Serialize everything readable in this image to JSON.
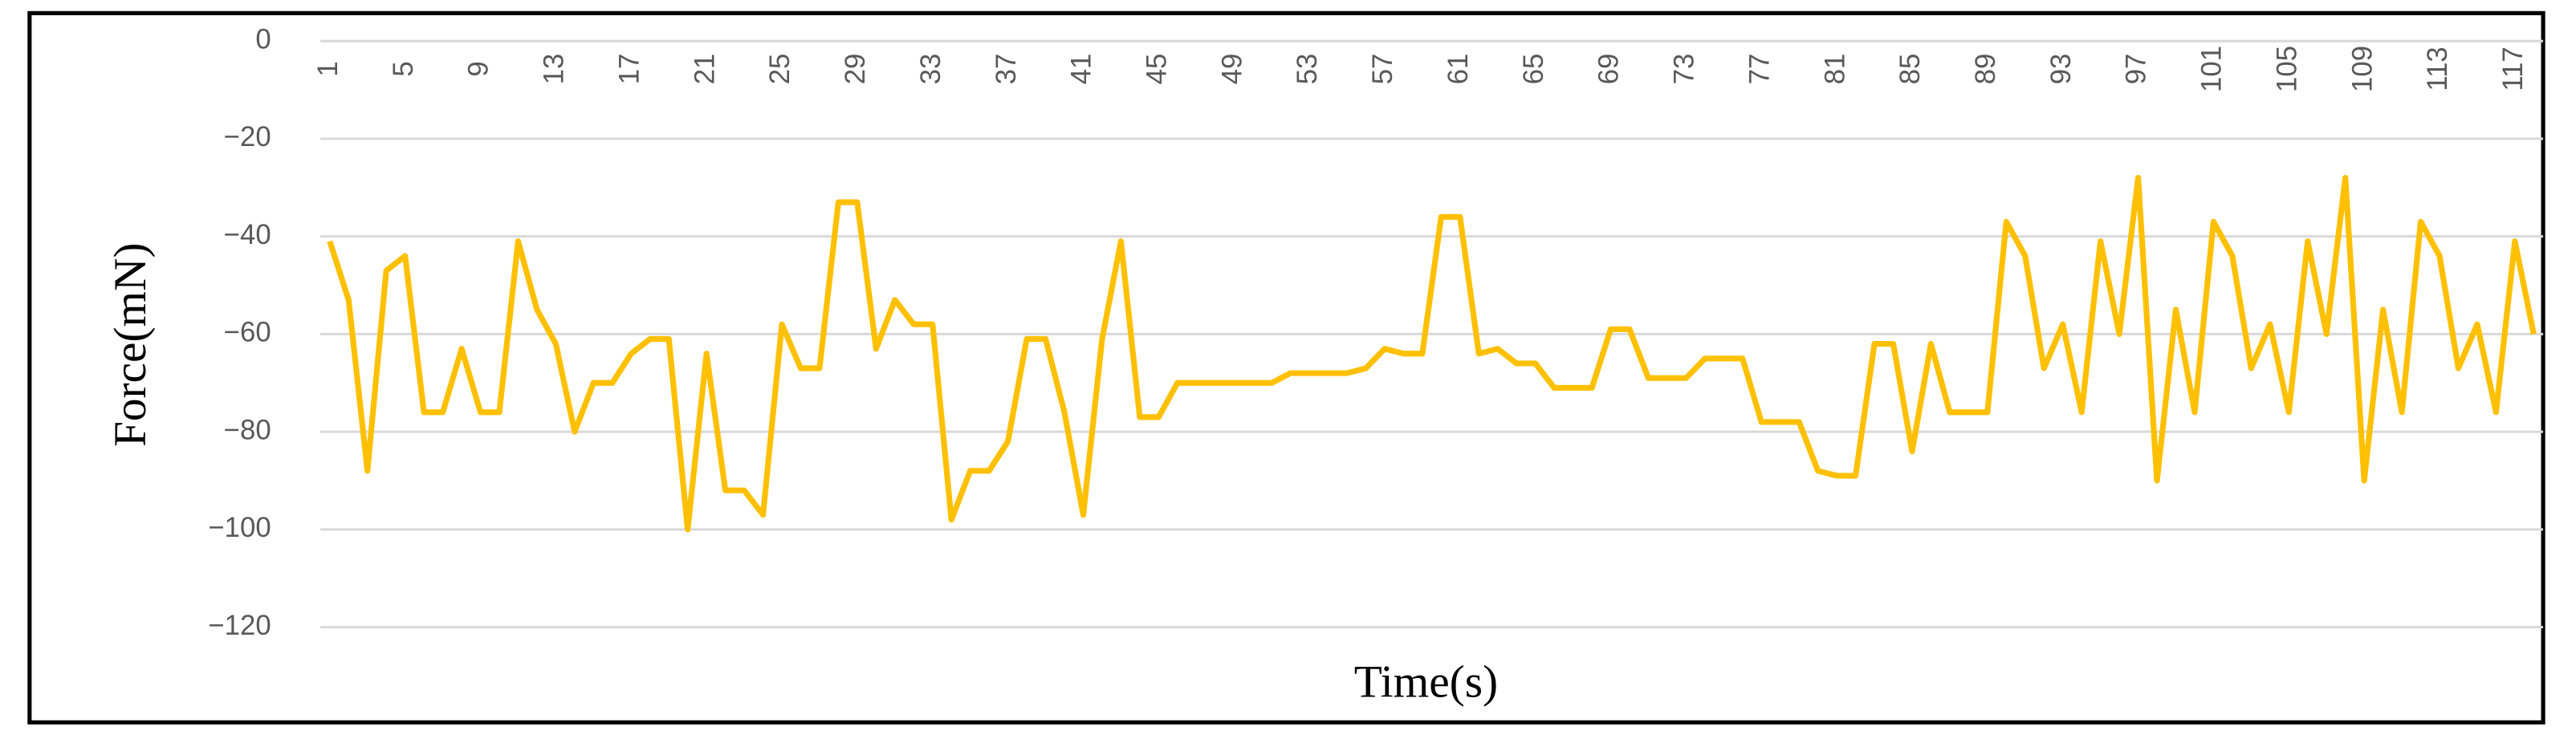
{
  "chart_data": {
    "type": "line",
    "x_label": "Time(s)",
    "y_label": "Force(mN)",
    "categories": [
      1,
      null,
      null,
      null,
      5,
      null,
      null,
      null,
      9,
      null,
      null,
      null,
      13,
      null,
      null,
      null,
      17,
      null,
      null,
      null,
      21,
      null,
      null,
      null,
      25,
      null,
      null,
      null,
      29,
      null,
      null,
      null,
      33,
      null,
      null,
      null,
      37,
      null,
      null,
      null,
      41,
      null,
      null,
      null,
      45,
      null,
      null,
      null,
      49,
      null,
      null,
      null,
      53,
      null,
      null,
      null,
      57,
      null,
      null,
      null,
      61,
      null,
      null,
      null,
      65,
      null,
      null,
      null,
      69,
      null,
      null,
      null,
      73,
      null,
      null,
      null,
      77,
      null,
      null,
      null,
      81,
      null,
      null,
      null,
      85,
      null,
      null,
      null,
      89,
      null,
      null,
      null,
      93,
      null,
      null,
      null,
      97,
      null,
      null,
      null,
      101,
      null,
      null,
      null,
      105,
      null,
      null,
      null,
      109,
      null,
      null,
      null,
      113,
      null,
      null,
      null,
      117,
      null
    ],
    "series": [
      {
        "color": "#ffc000",
        "values": [
          -41,
          -53,
          -88,
          -47,
          -44,
          -76,
          -76,
          -63,
          -76,
          -76,
          -41,
          -55,
          -62,
          -80,
          -70,
          -70,
          -64,
          -61,
          -61,
          -100,
          -64,
          -92,
          -92,
          -97,
          -58,
          -67,
          -67,
          -33,
          -33,
          -63,
          -53,
          -58,
          -58,
          -98,
          -88,
          -88,
          -82,
          -61,
          -61,
          -76,
          -97,
          -61,
          -41,
          -77,
          -77,
          -70,
          -70,
          -70,
          -70,
          -70,
          -70,
          -68,
          -68,
          -68,
          -68,
          -67,
          -63,
          -64,
          -64,
          -36,
          -36,
          -64,
          -63,
          -66,
          -66,
          -71,
          -71,
          -71,
          -59,
          -59,
          -69,
          -69,
          -69,
          -65,
          -65,
          -65,
          -78,
          -78,
          -78,
          -88,
          -89,
          -89,
          -62,
          -62,
          -84,
          -62,
          -76,
          -76,
          -76,
          -37,
          -44,
          -67,
          -58,
          -76,
          -41,
          -60,
          -28,
          -90,
          -55,
          -76,
          -37,
          -44,
          -67,
          -58,
          -76,
          -41,
          -60,
          -28,
          -90,
          -55,
          -76,
          -37,
          -44,
          -67,
          -58,
          -76,
          -41,
          -60
        ]
      }
    ],
    "ylim": [
      -120,
      0
    ],
    "yticks": [
      0,
      {
        "value": -20,
        "label": "−20"
      },
      {
        "value": -40,
        "label": "−40"
      },
      {
        "value": -60,
        "label": "−60"
      },
      {
        "value": -80,
        "label": "−80"
      },
      {
        "value": -100,
        "label": "−100"
      },
      {
        "value": -120,
        "label": "−120"
      }
    ],
    "grid": true
  }
}
